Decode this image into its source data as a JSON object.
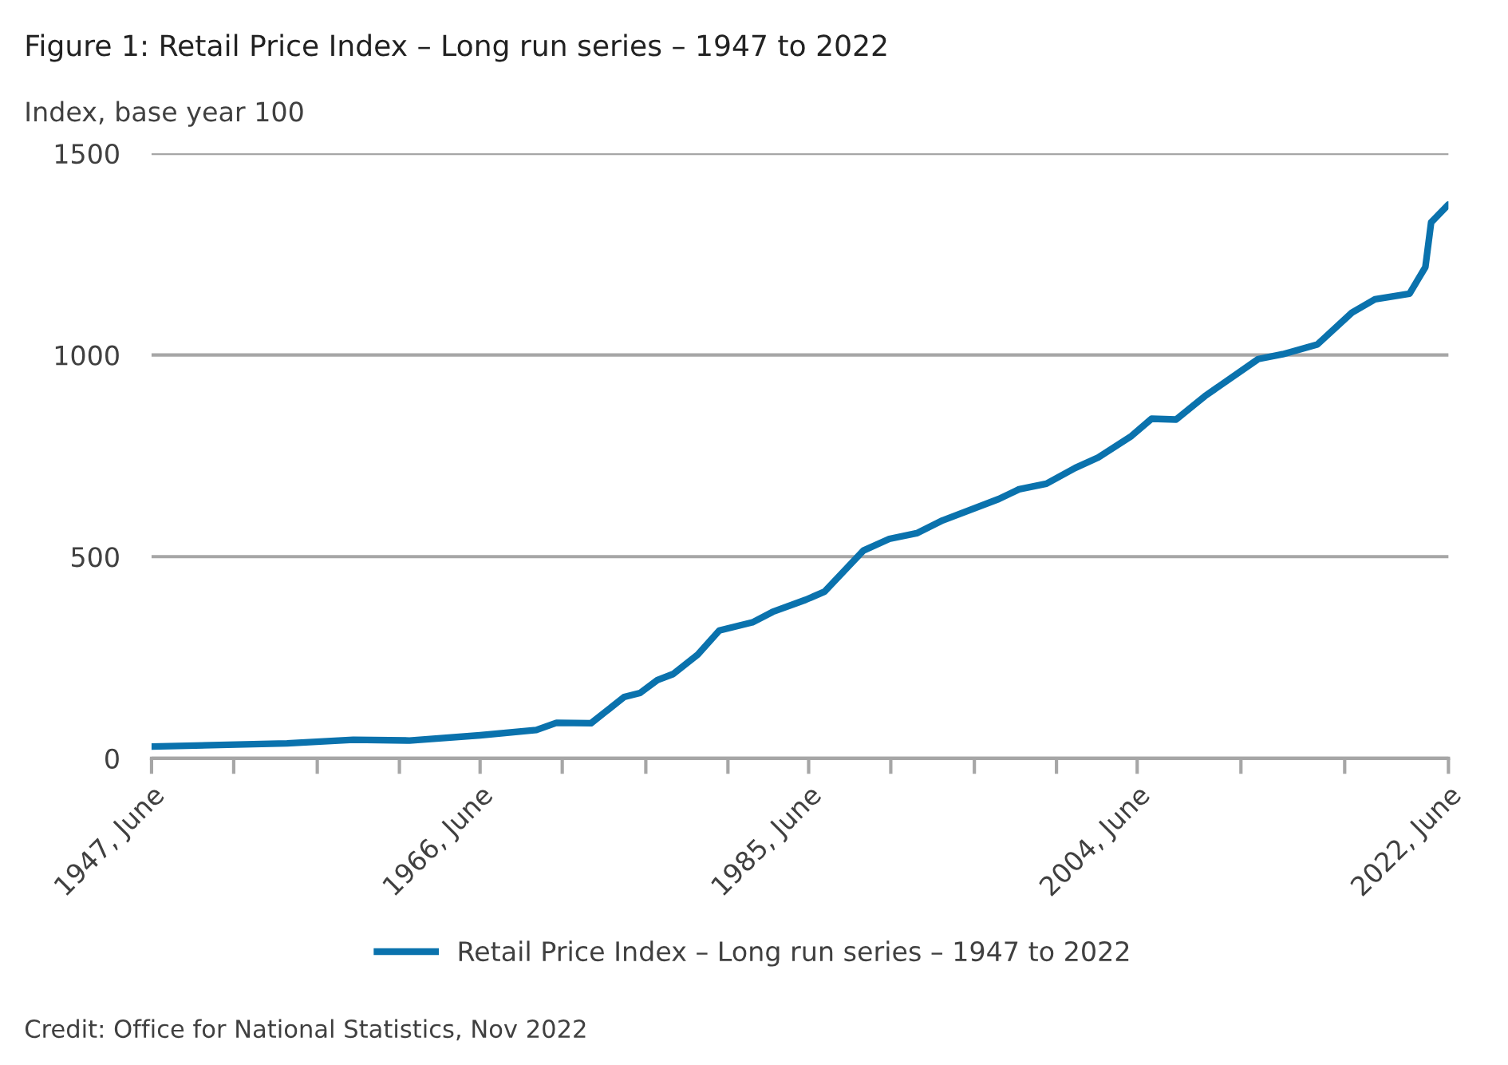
{
  "chart_data": {
    "type": "line",
    "title": "Figure 1: Retail Price Index – Long run series – 1947 to 2022",
    "ylabel": "Index, base year 100",
    "annotations": [
      "Credit: Office for National Statistics, Nov 2022"
    ],
    "series": [
      {
        "name": "Retail Price Index – Long run series – 1947 to 2022",
        "color": "#0a72ad",
        "x": [
          "1947-06",
          "1955-04",
          "1959-02",
          "1962-05",
          "1966-06",
          "1969-09",
          "1970-11",
          "1972-11",
          "1974-10",
          "1975-09",
          "1976-09",
          "1977-08",
          "1979-01",
          "1980-04",
          "1982-03",
          "1983-05",
          "1985-04",
          "1986-05",
          "1988-08",
          "1990-02",
          "1991-09",
          "1993-03",
          "1996-06",
          "1997-08",
          "1999-03",
          "2000-11",
          "2002-03",
          "2004-02",
          "2005-04",
          "2006-09",
          "2008-05",
          "2011-06",
          "2012-11",
          "2014-11",
          "2016-11",
          "2018-03",
          "2020-03",
          "2021-02",
          "2021-06",
          "2022-06"
        ],
        "values": [
          29,
          37,
          46,
          44,
          57,
          70,
          88,
          87,
          152,
          162,
          194,
          209,
          257,
          317,
          337,
          363,
          393,
          413,
          515,
          544,
          558,
          590,
          643,
          667,
          681,
          720,
          746,
          799,
          842,
          840,
          898,
          990,
          1002,
          1026,
          1105,
          1138,
          1152,
          1218,
          1329,
          1373
        ]
      }
    ],
    "xlim": [
      "1947-06",
      "2022-06"
    ],
    "xticks": [
      {
        "value": "1947-06",
        "label": "1947, June"
      },
      {
        "value": "1952-03",
        "label": null
      },
      {
        "value": "1957-01",
        "label": null
      },
      {
        "value": "1961-10",
        "label": null
      },
      {
        "value": "1966-06",
        "label": "1966, June"
      },
      {
        "value": "1971-03",
        "label": null
      },
      {
        "value": "1976-01",
        "label": null
      },
      {
        "value": "1980-10",
        "label": null
      },
      {
        "value": "1985-06",
        "label": "1985, June"
      },
      {
        "value": "1990-03",
        "label": null
      },
      {
        "value": "1995-01",
        "label": null
      },
      {
        "value": "1999-10",
        "label": null
      },
      {
        "value": "2004-06",
        "label": "2004, June"
      },
      {
        "value": "2010-06",
        "label": null
      },
      {
        "value": "2016-06",
        "label": null
      },
      {
        "value": "2022-06",
        "label": "2022, June"
      }
    ],
    "ylim": [
      0,
      1500
    ],
    "yticks": [
      0,
      500,
      1000,
      1500
    ],
    "grid": "y",
    "legend": "bottom",
    "marker": "none",
    "line_style": "solid"
  }
}
